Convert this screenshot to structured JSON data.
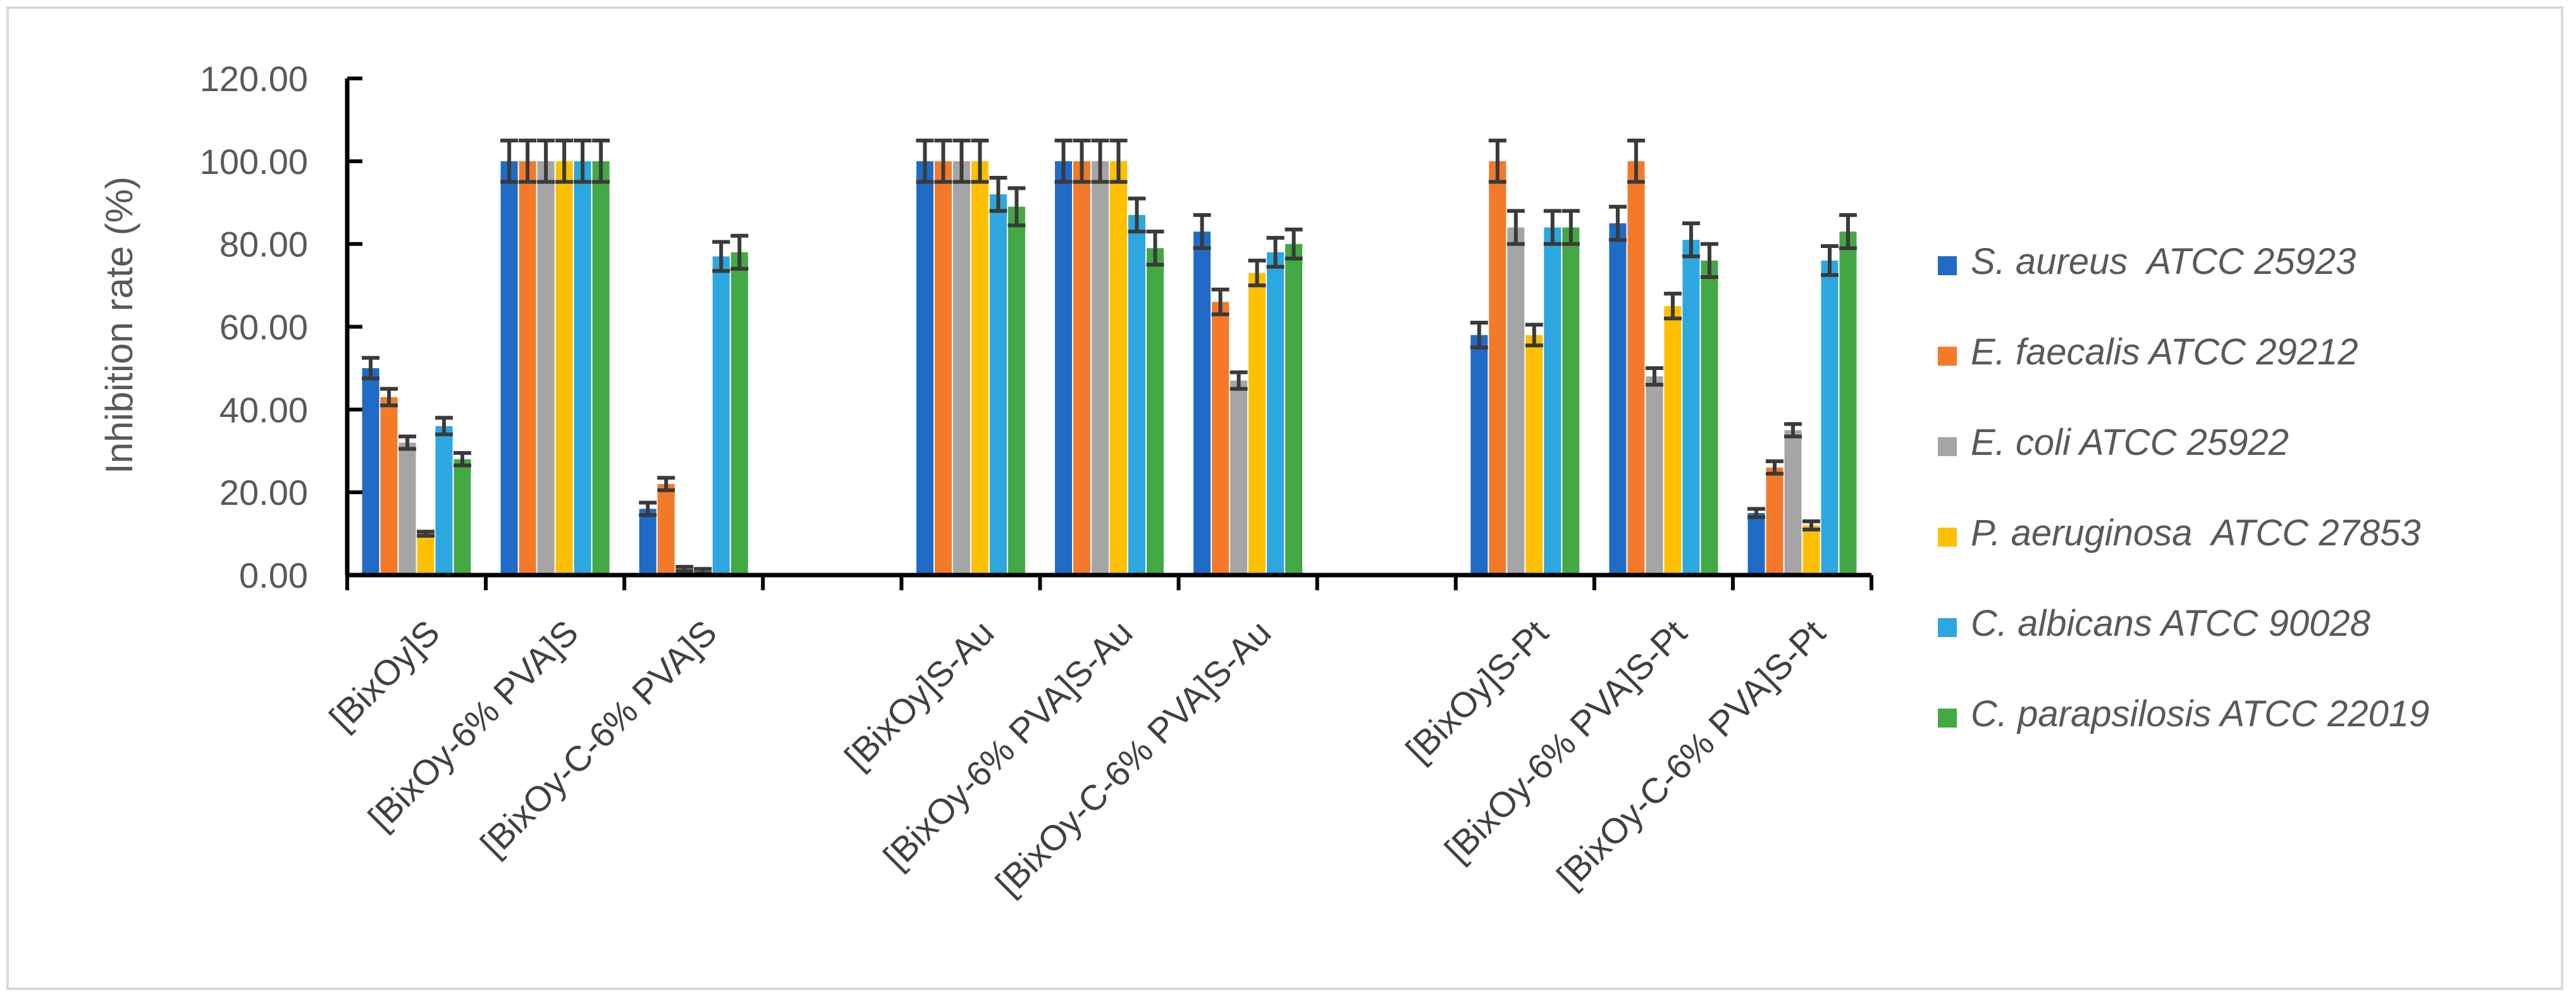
{
  "chart_data": {
    "type": "bar",
    "title": "",
    "xlabel": "",
    "ylabel": "Inhibition rate (%)",
    "ylim": [
      0,
      120
    ],
    "y_ticks": [
      "0.00",
      "20.00",
      "40.00",
      "60.00",
      "80.00",
      "100.00",
      "120.00"
    ],
    "grid": false,
    "legend_position": "right",
    "categories": [
      "[BixOy]S",
      "[BixOy-6% PVA]S",
      "[BixOy-C-6% PVA]S",
      "",
      "[BixOy]S-Au",
      "[BixOy-6% PVA]S-Au",
      "[BixOy-C-6% PVA]S-Au",
      "",
      "[BixOy]S-Pt",
      "[BixOy-6% PVA]S-Pt",
      "[BixOy-C-6% PVA]S-Pt"
    ],
    "series": [
      {
        "name": "S. aureus  ATCC 25923",
        "color": "#1f6bc6",
        "values": [
          50,
          100,
          16,
          null,
          100,
          100,
          83,
          null,
          58,
          85,
          15
        ],
        "errors": [
          2.5,
          5,
          1.5,
          null,
          5,
          5,
          4,
          null,
          3,
          4,
          1
        ]
      },
      {
        "name": "E. faecalis ATCC 29212",
        "color": "#f47a2a",
        "values": [
          43,
          100,
          22,
          null,
          100,
          100,
          66,
          null,
          100,
          100,
          26
        ],
        "errors": [
          2,
          5,
          1.5,
          null,
          5,
          5,
          3,
          null,
          5,
          5,
          1.5
        ]
      },
      {
        "name": "E. coli ATCC 25922",
        "color": "#a5a5a5",
        "values": [
          32,
          100,
          1.5,
          null,
          100,
          100,
          47,
          null,
          84,
          48,
          35
        ],
        "errors": [
          1.5,
          5,
          0.5,
          null,
          5,
          5,
          2,
          null,
          4,
          2,
          1.5
        ]
      },
      {
        "name": "P. aeruginosa  ATCC 27853",
        "color": "#ffc000",
        "values": [
          10,
          100,
          1,
          null,
          100,
          100,
          73,
          null,
          58,
          65,
          12
        ],
        "errors": [
          0.5,
          5,
          0.5,
          null,
          5,
          5,
          3,
          null,
          2.5,
          3,
          1
        ]
      },
      {
        "name": "C. albicans ATCC 90028",
        "color": "#2ca7e0",
        "values": [
          36,
          100,
          77,
          null,
          92,
          87,
          78,
          null,
          84,
          81,
          76
        ],
        "errors": [
          2,
          5,
          3.5,
          null,
          4,
          4,
          3.5,
          null,
          4,
          4,
          3.5
        ]
      },
      {
        "name": "C. parapsilosis ATCC 22019",
        "color": "#44a845",
        "values": [
          28,
          100,
          78,
          null,
          89,
          79,
          80,
          null,
          84,
          76,
          83
        ],
        "errors": [
          1.5,
          5,
          4,
          null,
          4.5,
          4,
          3.5,
          null,
          4,
          4,
          4
        ]
      }
    ]
  }
}
